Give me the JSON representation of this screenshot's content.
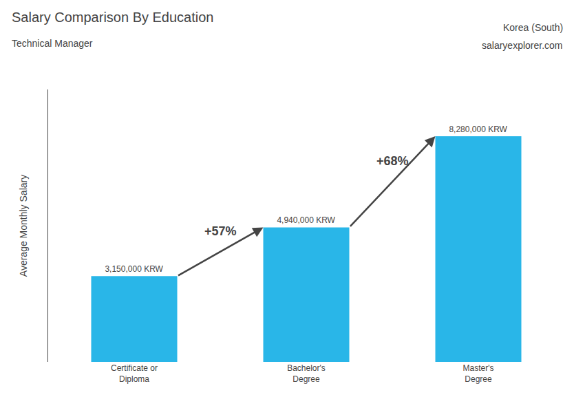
{
  "chart_data": {
    "type": "bar",
    "title": "Salary Comparison By Education",
    "subtitle": "Technical Manager",
    "ylabel": "Average Monthly Salary",
    "categories": [
      "Certificate or\nDiploma",
      "Bachelor's\nDegree",
      "Master's\nDegree"
    ],
    "values": [
      3150000,
      4940000,
      8280000
    ],
    "value_labels": [
      "3,150,000 KRW",
      "4,940,000 KRW",
      "8,280,000 KRW"
    ],
    "data_labels": true,
    "color": "#29b6e8",
    "ylim": [
      0,
      10000000
    ],
    "tick_labels": "x",
    "grid": false,
    "annotations": [
      {
        "text": "Korea (South)"
      },
      {
        "text": [
          "salary",
          "explorer.com"
        ]
      },
      {
        "text": "+57%",
        "from": "Certificate or\nDiploma",
        "to": "Bachelor's\nDegree"
      },
      {
        "text": "+68%",
        "from": "Bachelor's\nDegree",
        "to": "Master's\nDegree"
      }
    ]
  }
}
